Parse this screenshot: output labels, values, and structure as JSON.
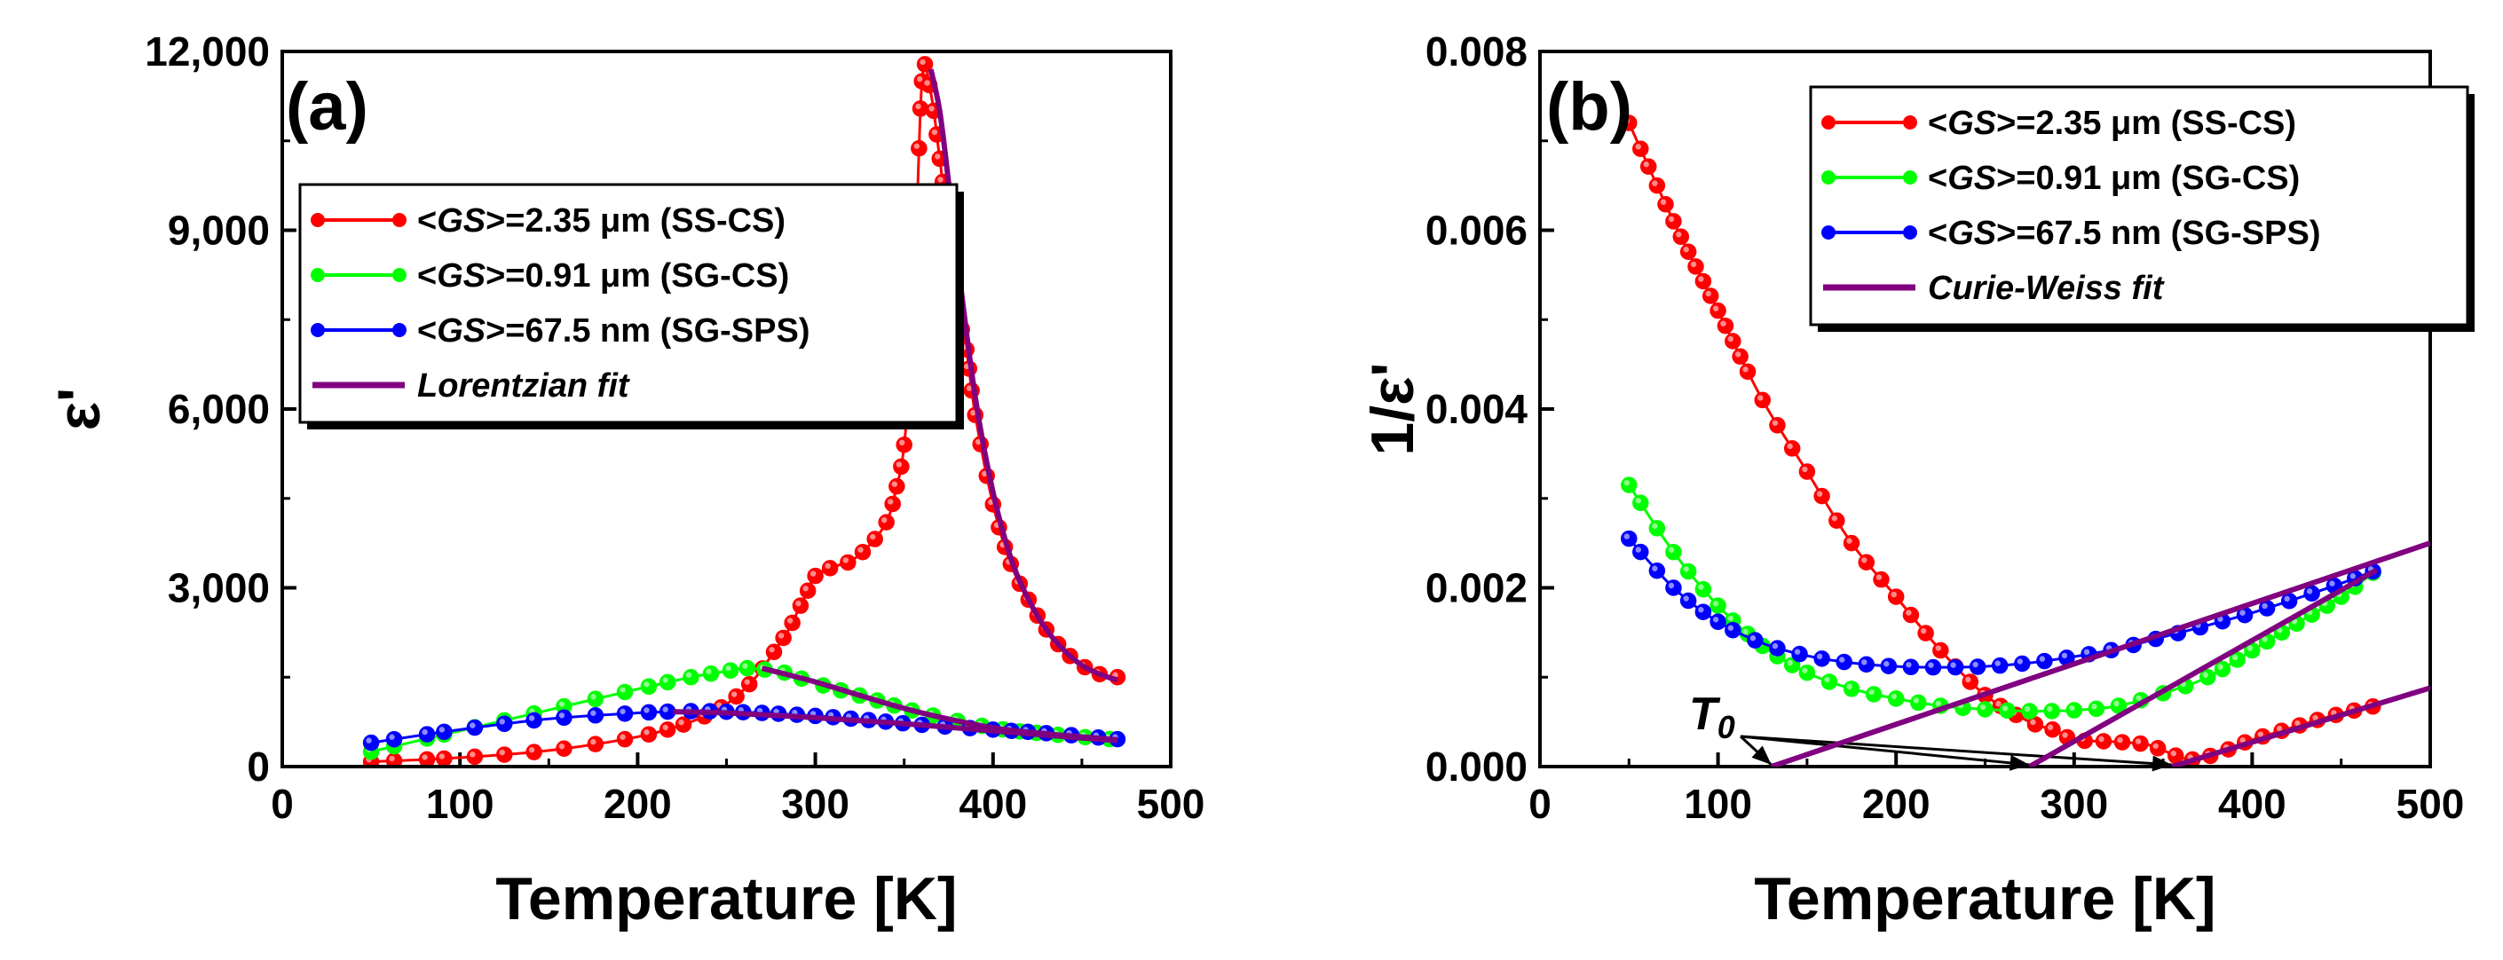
{
  "chart_data": [
    {
      "type": "line",
      "panel": "(a)",
      "xlabel": "Temperature [K]",
      "ylabel": "ε'",
      "xlim": [
        0,
        500
      ],
      "ylim": [
        0,
        12000
      ],
      "xticks": [
        0,
        100,
        200,
        300,
        400,
        500
      ],
      "yticks": [
        0,
        3000,
        6000,
        9000,
        12000
      ],
      "xtick_labels": [
        "0",
        "100",
        "200",
        "300",
        "400",
        "500"
      ],
      "ytick_labels": [
        "0",
        "3,000",
        "6,000",
        "9,000",
        "12,000"
      ],
      "legend": {
        "placement": "upper-left",
        "entries": [
          {
            "label": "<GS>=2.35 μm (SS-CS)",
            "color": "#ff0000",
            "marker": "circle"
          },
          {
            "label": "<GS>=0.91 μm (SG-CS)",
            "color": "#00ff00",
            "marker": "circle"
          },
          {
            "label": "<GS>=67.5 nm (SG-SPS)",
            "color": "#0000ff",
            "marker": "circle"
          },
          {
            "label": "Lorentzian fit",
            "color": "#800080",
            "marker": "none"
          }
        ]
      },
      "series": [
        {
          "name": "<GS>=2.35 μm (SS-CS)",
          "color": "#ff0000",
          "x": [
            50,
            100,
            150,
            200,
            230,
            250,
            265,
            275,
            285,
            290,
            295,
            300,
            310,
            320,
            330,
            340,
            345,
            350,
            355,
            360,
            365,
            370,
            375,
            380,
            385,
            390,
            400,
            410,
            420,
            430,
            440,
            450,
            460,
            470
          ],
          "y": [
            80,
            150,
            270,
            500,
            750,
            1050,
            1450,
            1850,
            2300,
            2600,
            2900,
            3200,
            3350,
            3450,
            3700,
            4100,
            4600,
            5400,
            7400,
            11500,
            11300,
            10200,
            9000,
            7700,
            7000,
            5900,
            4400,
            3400,
            2800,
            2300,
            1950,
            1700,
            1550,
            1500
          ]
        },
        {
          "name": "<GS>=0.91 μm (SG-CS)",
          "color": "#00ff00",
          "x": [
            50,
            100,
            150,
            200,
            230,
            250,
            260,
            270,
            280,
            300,
            330,
            360,
            400,
            430,
            470
          ],
          "y": [
            250,
            600,
            950,
            1300,
            1500,
            1600,
            1650,
            1630,
            1600,
            1400,
            1150,
            900,
            650,
            550,
            450
          ]
        },
        {
          "name": "<GS>=67.5 nm (SG-SPS)",
          "color": "#0000ff",
          "x": [
            50,
            100,
            150,
            200,
            230,
            250,
            270,
            300,
            330,
            360,
            400,
            430,
            470
          ],
          "y": [
            400,
            620,
            800,
            900,
            930,
            920,
            900,
            850,
            780,
            700,
            620,
            560,
            460
          ]
        }
      ],
      "fits": [
        {
          "name": "Lorentzian fit (SS-CS)",
          "color": "#800080",
          "x": [
            365,
            370,
            375,
            380,
            390,
            400,
            410,
            420,
            430,
            440,
            450,
            460,
            470
          ],
          "y": [
            11700,
            11000,
            9800,
            8500,
            6200,
            4600,
            3500,
            2800,
            2300,
            1950,
            1700,
            1550,
            1450
          ]
        },
        {
          "name": "Lorentzian fit (SG-CS)",
          "color": "#800080",
          "x": [
            270,
            300,
            330,
            360,
            400,
            430,
            470
          ],
          "y": [
            1650,
            1420,
            1150,
            900,
            650,
            550,
            450
          ]
        },
        {
          "name": "Lorentzian fit (SG-SPS)",
          "color": "#800080",
          "x": [
            220,
            250,
            300,
            350,
            400,
            450,
            470
          ],
          "y": [
            920,
            900,
            820,
            720,
            600,
            480,
            440
          ]
        }
      ]
    },
    {
      "type": "line",
      "panel": "(b)",
      "xlabel": "Temperature [K]",
      "ylabel": "1/ε'",
      "xlim": [
        0,
        500
      ],
      "ylim": [
        0,
        0.008
      ],
      "xticks": [
        0,
        100,
        200,
        300,
        400,
        500
      ],
      "yticks": [
        0,
        0.002,
        0.004,
        0.006,
        0.008
      ],
      "xtick_labels": [
        "0",
        "100",
        "200",
        "300",
        "400",
        "500"
      ],
      "ytick_labels": [
        "0.000",
        "0.002",
        "0.004",
        "0.006",
        "0.008"
      ],
      "annotation": "T0",
      "annotation_targets": [
        {
          "x": 130,
          "y": 0.0
        },
        {
          "x": 275,
          "y": 0.0
        },
        {
          "x": 355,
          "y": 0.0
        }
      ],
      "legend": {
        "placement": "upper-right",
        "entries": [
          {
            "label": "<GS>=2.35 μm (SS-CS)",
            "color": "#ff0000",
            "marker": "circle"
          },
          {
            "label": "<GS>=0.91 μm (SG-CS)",
            "color": "#00ff00",
            "marker": "circle"
          },
          {
            "label": "<GS>=67.5 nm (SG-SPS)",
            "color": "#0000ff",
            "marker": "circle"
          },
          {
            "label": "Curie-Weiss fit",
            "color": "#800080",
            "marker": "none"
          }
        ]
      },
      "series": [
        {
          "name": "<GS>=2.35 μm (SS-CS)",
          "color": "#ff0000",
          "x": [
            50,
            75,
            100,
            125,
            150,
            175,
            200,
            225,
            250,
            275,
            290,
            300,
            320,
            340,
            350,
            360,
            365,
            370,
            380,
            390,
            400,
            420,
            440,
            460,
            470
          ],
          "y": [
            0.0072,
            0.0061,
            0.0051,
            0.0041,
            0.0033,
            0.0025,
            0.0019,
            0.0013,
            0.0008,
            0.0005,
            0.0004,
            0.0003,
            0.00028,
            0.00025,
            0.00018,
            0.0001,
            8e-05,
            9e-05,
            0.00014,
            0.00022,
            0.0003,
            0.00042,
            0.00054,
            0.00064,
            0.00068
          ]
        },
        {
          "name": "<GS>=0.91 μm (SG-CS)",
          "color": "#00ff00",
          "x": [
            50,
            75,
            100,
            125,
            150,
            175,
            200,
            225,
            250,
            275,
            300,
            325,
            350,
            375,
            400,
            425,
            450,
            470
          ],
          "y": [
            0.00315,
            0.0024,
            0.0018,
            0.00135,
            0.00105,
            0.00087,
            0.00076,
            0.00068,
            0.00064,
            0.00062,
            0.00063,
            0.00068,
            0.00082,
            0.001,
            0.0013,
            0.0016,
            0.0019,
            0.0022
          ]
        },
        {
          "name": "<GS>=67.5 nm (SG-SPS)",
          "color": "#0000ff",
          "x": [
            50,
            75,
            100,
            125,
            150,
            175,
            200,
            225,
            250,
            275,
            300,
            325,
            350,
            375,
            400,
            425,
            450,
            470
          ],
          "y": [
            0.00255,
            0.002,
            0.00162,
            0.00138,
            0.00124,
            0.00116,
            0.00112,
            0.00111,
            0.00112,
            0.00116,
            0.00123,
            0.00132,
            0.00145,
            0.00158,
            0.00172,
            0.00188,
            0.00205,
            0.0022
          ]
        }
      ],
      "fits": [
        {
          "name": "Curie-Weiss fit (SG-SPS)",
          "color": "#800080",
          "x": [
            130,
            500
          ],
          "y": [
            0.0,
            0.0025
          ]
        },
        {
          "name": "Curie-Weiss fit (SG-CS)",
          "color": "#800080",
          "x": [
            275,
            470
          ],
          "y": [
            0.0,
            0.0022
          ]
        },
        {
          "name": "Curie-Weiss fit (SS-CS)",
          "color": "#800080",
          "x": [
            355,
            500
          ],
          "y": [
            0.0,
            0.00088
          ]
        }
      ]
    }
  ]
}
